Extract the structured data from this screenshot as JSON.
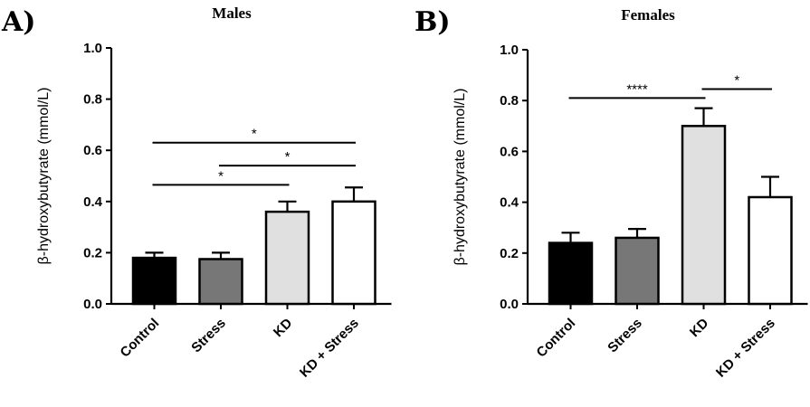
{
  "chart_data": [
    {
      "panel": "A)",
      "type": "bar",
      "title": "Males",
      "ylabel": "β-hydroxybutyrate (mmol/L)",
      "ylim": [
        0,
        1.0
      ],
      "yticks": [
        "0.0",
        "0.2",
        "0.4",
        "0.6",
        "0.8",
        "1.0"
      ],
      "categories": [
        "Control",
        "Stress",
        "KD",
        "KD + Stress"
      ],
      "values": [
        0.18,
        0.175,
        0.36,
        0.4
      ],
      "errors": [
        0.02,
        0.025,
        0.04,
        0.055
      ],
      "colors": [
        "#000000",
        "#777777",
        "#e0e0e0",
        "#ffffff"
      ],
      "significance": [
        {
          "from": 0,
          "to": 2,
          "y": 0.465,
          "label": "*"
        },
        {
          "from": 1,
          "to": 3,
          "y": 0.54,
          "label": "*"
        },
        {
          "from": 0,
          "to": 3,
          "y": 0.63,
          "label": "*"
        }
      ]
    },
    {
      "panel": "B)",
      "type": "bar",
      "title": "Females",
      "ylabel": "β-hydroxybutyrate (mmol/L)",
      "ylim": [
        0,
        1.0
      ],
      "yticks": [
        "0.0",
        "0.2",
        "0.4",
        "0.6",
        "0.8",
        "1.0"
      ],
      "categories": [
        "Control",
        "Stress",
        "KD",
        "KD + Stress"
      ],
      "values": [
        0.24,
        0.26,
        0.7,
        0.42
      ],
      "errors": [
        0.04,
        0.035,
        0.07,
        0.08
      ],
      "colors": [
        "#000000",
        "#777777",
        "#e0e0e0",
        "#ffffff"
      ],
      "significance": [
        {
          "from": 0,
          "to": 2,
          "y": 0.81,
          "label": "****"
        },
        {
          "from": 2,
          "to": 3,
          "y": 0.845,
          "label": "*"
        }
      ]
    }
  ]
}
